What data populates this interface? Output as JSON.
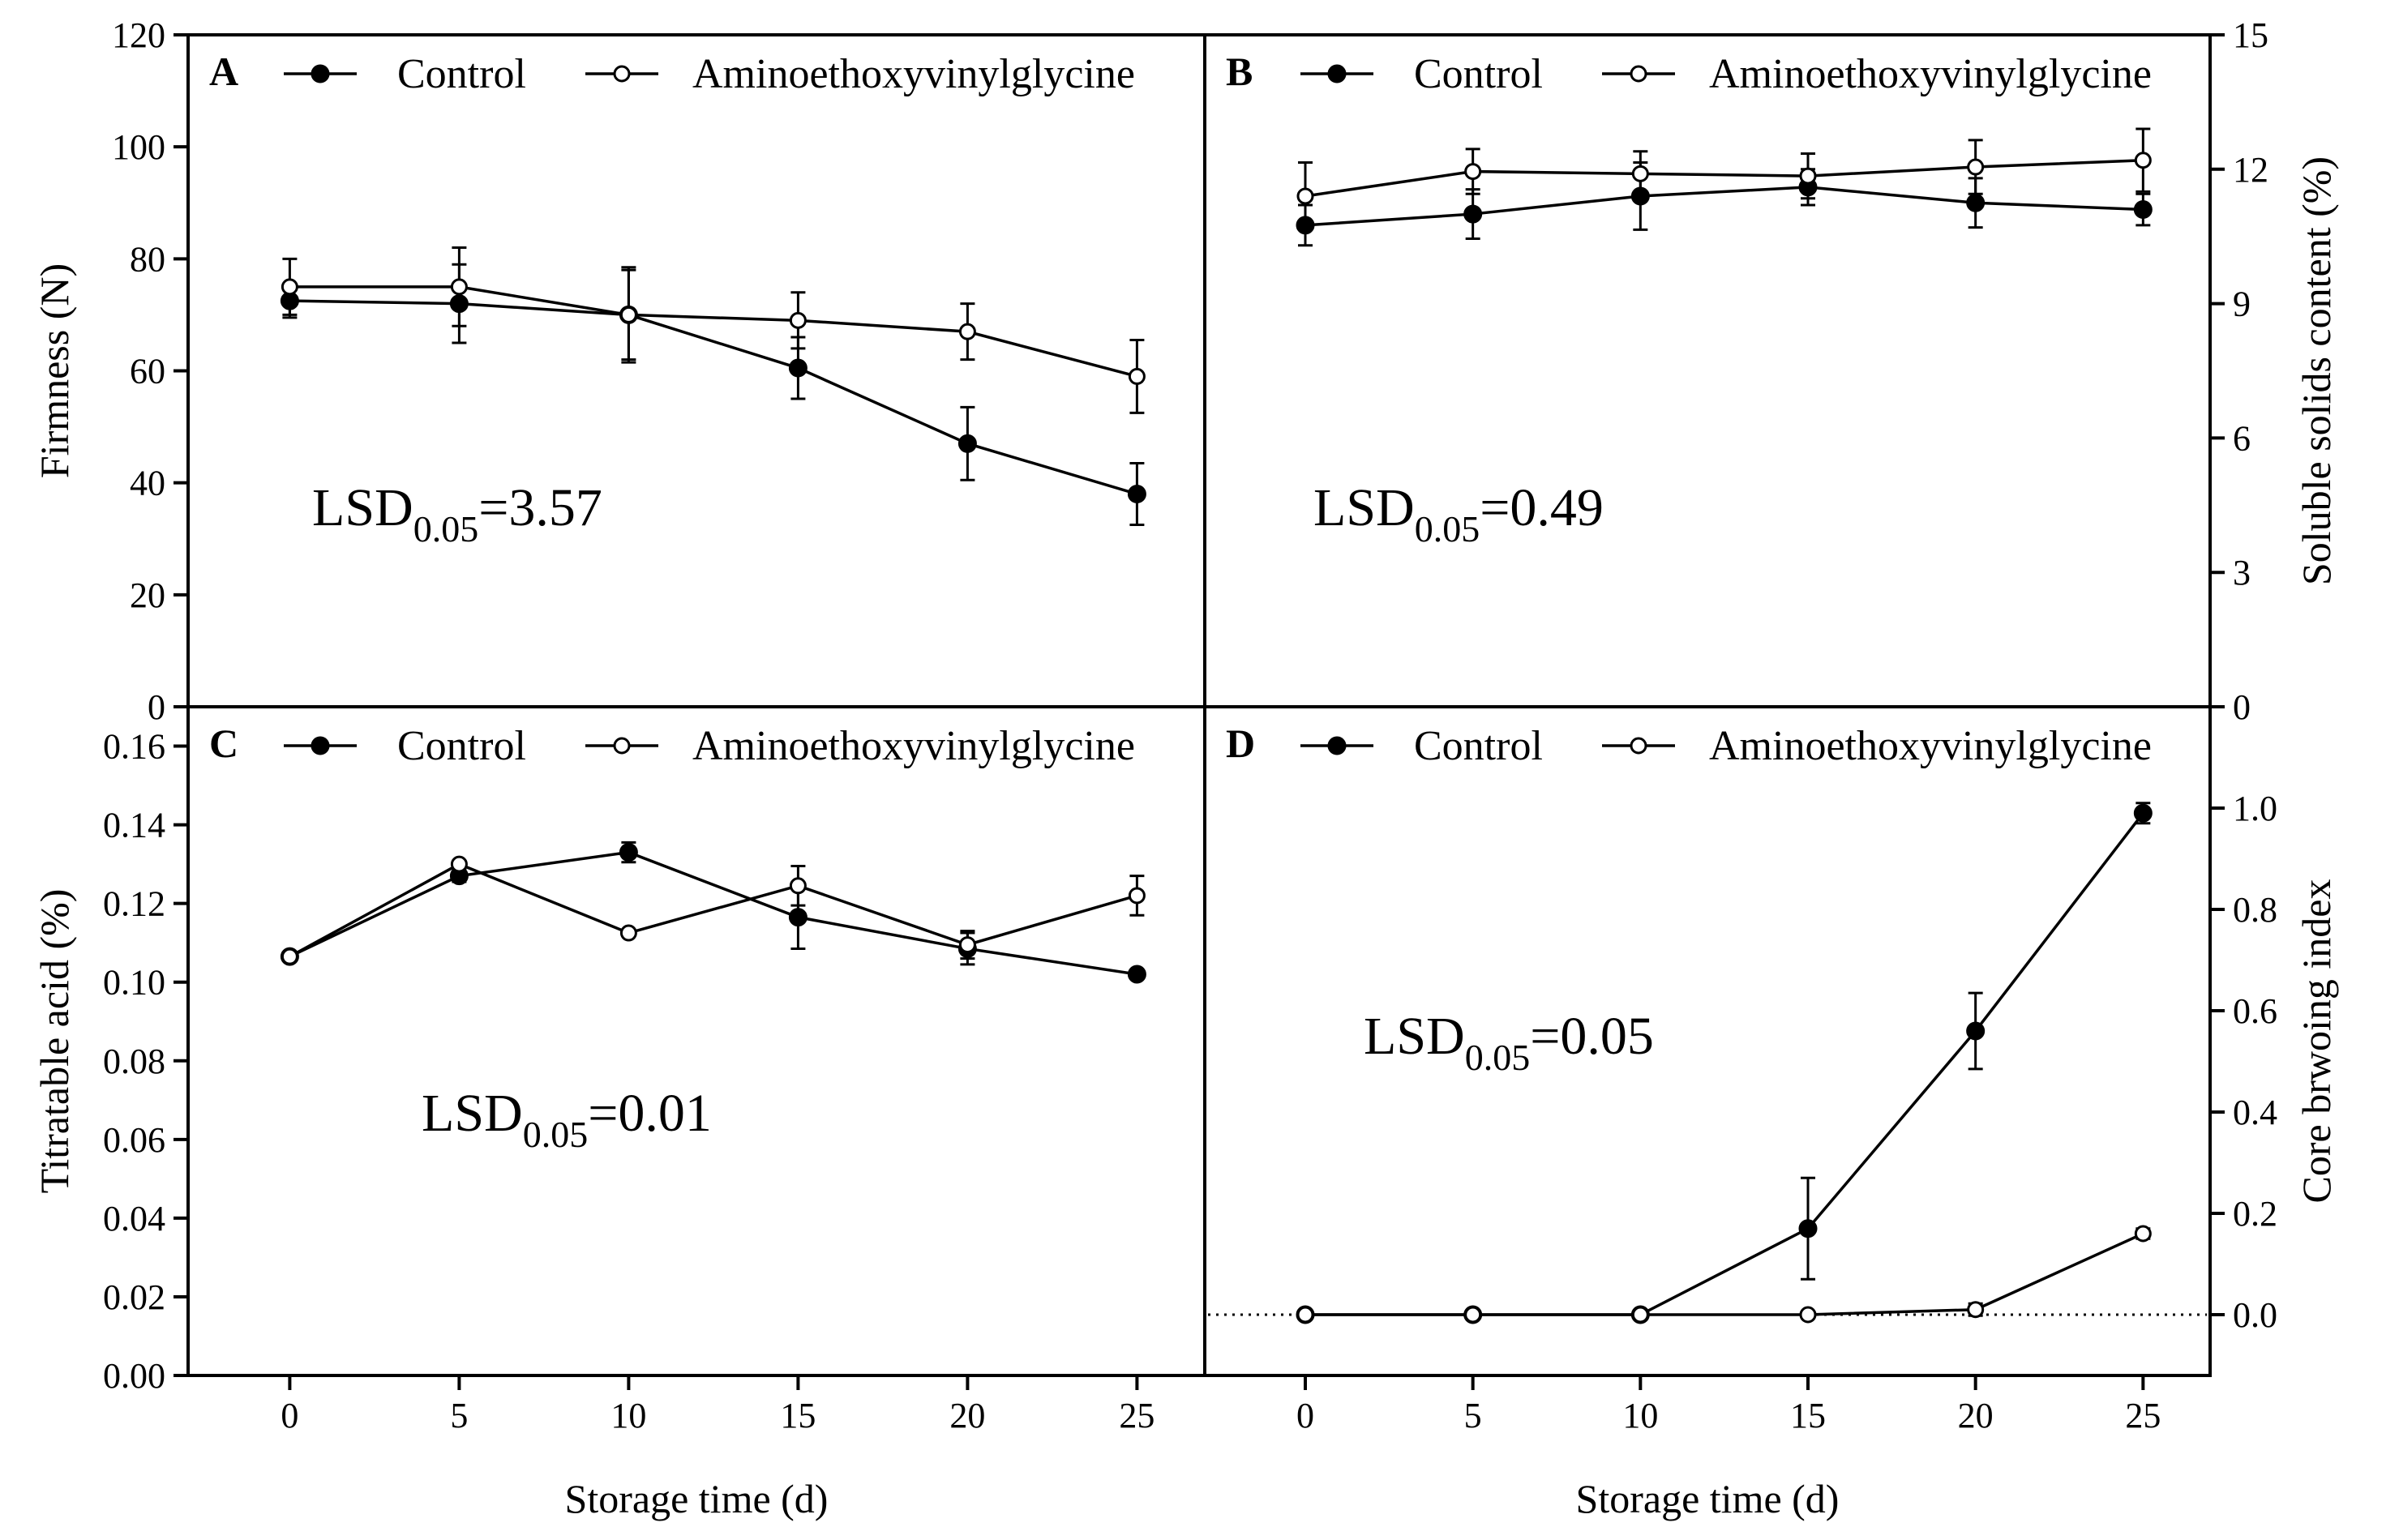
{
  "chart_data": [
    {
      "panel": "A",
      "type": "line",
      "x": [
        0,
        5,
        10,
        15,
        20,
        25
      ],
      "xlim": [
        -3,
        27
      ],
      "x_ticks": [
        0,
        5,
        10,
        15,
        20,
        25
      ],
      "ylabel": "Firmness (N)",
      "ylim": [
        0,
        120
      ],
      "y_ticks": [
        0,
        20,
        40,
        60,
        80,
        100,
        120
      ],
      "y_tick_decimals": 0,
      "y_axis_side": "left",
      "legend_position": "top",
      "annotation": {
        "main": "LSD",
        "sub": "0.05",
        "value": "=3.57"
      },
      "series": [
        {
          "name": "Control",
          "marker": "filled-circle",
          "values": [
            72.5,
            72,
            70,
            60.5,
            47,
            38
          ],
          "errors": [
            3,
            7,
            8,
            5.5,
            6.5,
            5.5
          ]
        },
        {
          "name": "Aminoethoxyvinylglycine",
          "marker": "open-circle",
          "values": [
            75,
            75,
            70,
            69,
            67,
            59
          ],
          "errors": [
            5,
            7,
            8.5,
            5,
            5,
            6.5
          ]
        }
      ]
    },
    {
      "panel": "B",
      "type": "line",
      "x": [
        0,
        5,
        10,
        15,
        20,
        25
      ],
      "xlim": [
        -3,
        27
      ],
      "x_ticks": [
        0,
        5,
        10,
        15,
        20,
        25
      ],
      "ylabel": "Soluble solids content (%)",
      "ylim": [
        0,
        15
      ],
      "y_ticks": [
        0,
        3,
        6,
        9,
        12,
        15
      ],
      "y_tick_decimals": 0,
      "y_axis_side": "right",
      "legend_position": "top",
      "annotation": {
        "main": "LSD",
        "sub": "0.05",
        "value": "=0.49"
      },
      "series": [
        {
          "name": "Control",
          "marker": "filled-circle",
          "values": [
            10.75,
            11,
            11.4,
            11.6,
            11.25,
            11.1
          ],
          "errors": [
            0.45,
            0.55,
            0.75,
            0.4,
            0.55,
            0.35
          ]
        },
        {
          "name": "Aminoethoxyvinylglycine",
          "marker": "open-circle",
          "values": [
            11.4,
            11.95,
            11.9,
            11.85,
            12.05,
            12.2
          ],
          "errors": [
            0.75,
            0.5,
            0.5,
            0.5,
            0.6,
            0.7
          ]
        }
      ]
    },
    {
      "panel": "C",
      "type": "line",
      "x": [
        0,
        5,
        10,
        15,
        20,
        25
      ],
      "xlim": [
        -3,
        27
      ],
      "x_ticks": [
        0,
        5,
        10,
        15,
        20,
        25
      ],
      "xlabel": "Storage time (d)",
      "ylabel": "Titratable acid (%)",
      "ylim": [
        0,
        0.17
      ],
      "y_ticks": [
        0,
        0.02,
        0.04,
        0.06,
        0.08,
        0.1,
        0.12,
        0.14,
        0.16
      ],
      "y_tick_decimals": 2,
      "y_axis_side": "left",
      "legend_position": "top",
      "annotation": {
        "main": "LSD",
        "sub": "0.05",
        "value": "=0.01"
      },
      "series": [
        {
          "name": "Control",
          "marker": "filled-circle",
          "values": [
            0.1065,
            0.127,
            0.133,
            0.1165,
            0.1085,
            0.102
          ],
          "errors": [
            0.0005,
            0.0015,
            0.0025,
            0.008,
            0.004,
            0.0005
          ]
        },
        {
          "name": "Aminoethoxyvinylglycine",
          "marker": "open-circle",
          "values": [
            0.1065,
            0.13,
            0.1125,
            0.1245,
            0.1095,
            0.122
          ],
          "errors": [
            0.0005,
            0.0005,
            0.0005,
            0.005,
            0.0035,
            0.005
          ]
        }
      ]
    },
    {
      "panel": "D",
      "type": "line",
      "x": [
        0,
        5,
        10,
        15,
        20,
        25
      ],
      "xlim": [
        -3,
        27
      ],
      "x_ticks": [
        0,
        5,
        10,
        15,
        20,
        25
      ],
      "xlabel": "Storage time (d)",
      "ylabel": "Core brwoing index",
      "ylim": [
        -0.12,
        1.2
      ],
      "y_ticks": [
        0.0,
        0.2,
        0.4,
        0.6,
        0.8,
        1.0
      ],
      "y_tick_decimals": 1,
      "y_axis_side": "right",
      "reference_line_y": 0,
      "legend_position": "top",
      "annotation": {
        "main": "LSD",
        "sub": "0.05",
        "value": "=0.05"
      },
      "series": [
        {
          "name": "Control",
          "marker": "filled-circle",
          "values": [
            0,
            0,
            0,
            0.17,
            0.56,
            0.99
          ],
          "errors": [
            0,
            0,
            0,
            0.1,
            0.075,
            0.02
          ]
        },
        {
          "name": "Aminoethoxyvinylglycine",
          "marker": "open-circle",
          "values": [
            0,
            0,
            0,
            0,
            0.01,
            0.16
          ],
          "errors": [
            0,
            0,
            0,
            0,
            0.012,
            0.01
          ]
        }
      ]
    }
  ]
}
